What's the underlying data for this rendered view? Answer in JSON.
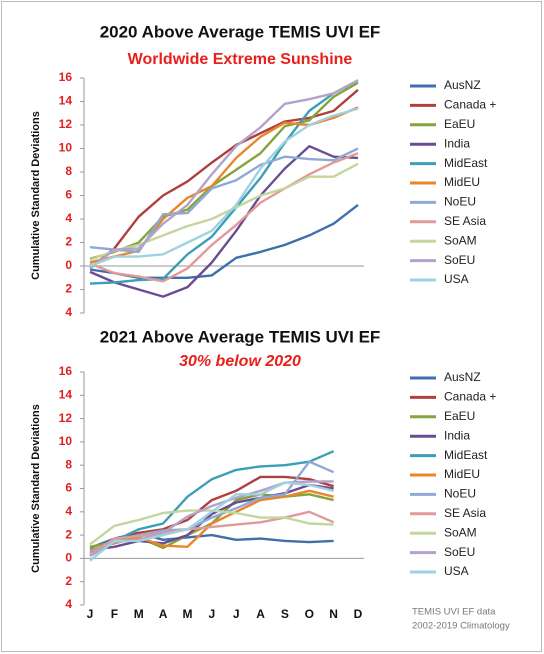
{
  "chart_data": [
    {
      "type": "line",
      "title": "2020 Above Average TEMIS UVI EF",
      "subtitle": "Worldwide Extreme Sunshine",
      "y_label": "Cumulative Standard Deviations",
      "ylim": [
        -4,
        16
      ],
      "yticks": [
        16,
        14,
        12,
        10,
        8,
        6,
        4,
        2,
        0,
        {
          "value": -2,
          "label": "2"
        },
        {
          "value": -4,
          "label": "4"
        }
      ],
      "legend": "right",
      "series": [
        {
          "name": "AusNZ",
          "color": "#3f6fad",
          "values": [
            -0.3,
            -0.6,
            -1,
            -1,
            -1,
            -0.8,
            0.7,
            1.2,
            1.8,
            2.6,
            3.6,
            5.2
          ]
        },
        {
          "name": "Canada +",
          "color": "#b0403e",
          "values": [
            -0.2,
            1.5,
            4.2,
            6,
            7.2,
            8.8,
            10.3,
            11.3,
            12.3,
            12.6,
            13.2,
            15
          ]
        },
        {
          "name": "EaEU",
          "color": "#86a33c",
          "values": [
            0.6,
            1.2,
            2,
            4.2,
            4.8,
            6.8,
            8.2,
            9.6,
            11.9,
            12.4,
            14.4,
            15.6
          ]
        },
        {
          "name": "India",
          "color": "#6a4c93",
          "values": [
            -0.5,
            -1.4,
            -2,
            -2.6,
            -1.8,
            0.3,
            3,
            6,
            8.3,
            10.2,
            9.3,
            9.2
          ]
        },
        {
          "name": "MidEast",
          "color": "#3b9fb5",
          "values": [
            -1.5,
            -1.4,
            -1.2,
            -1.1,
            1,
            2.5,
            5,
            7.5,
            10.5,
            13.2,
            14.7,
            15.8
          ]
        },
        {
          "name": "MidEU",
          "color": "#e8862a",
          "values": [
            0.3,
            0.8,
            1.3,
            4,
            5.8,
            6.8,
            9.2,
            11,
            12.2,
            12,
            12.6,
            13.5
          ]
        },
        {
          "name": "NoEU",
          "color": "#8ea9d4",
          "values": [
            1.6,
            1.4,
            1.2,
            4.4,
            4.5,
            6.6,
            7.3,
            8.6,
            9.3,
            9.1,
            9,
            10
          ]
        },
        {
          "name": "SE Asia",
          "color": "#e19a98",
          "values": [
            0.2,
            -0.6,
            -0.9,
            -1.3,
            -0.2,
            1.8,
            3.5,
            5.4,
            6.6,
            7.8,
            8.8,
            9.6
          ]
        },
        {
          "name": "SoAM",
          "color": "#c3d69b",
          "values": [
            0.5,
            1.3,
            1.8,
            2.6,
            3.4,
            4,
            5,
            6,
            6.6,
            7.6,
            7.6,
            8.7
          ]
        },
        {
          "name": "SoEU",
          "color": "#b3a3c9",
          "values": [
            -0.2,
            1.4,
            1.5,
            3.6,
            5.2,
            7.8,
            10.2,
            11.8,
            13.8,
            14.2,
            14.7,
            15.8
          ]
        },
        {
          "name": "USA",
          "color": "#9fd1e0",
          "values": [
            0,
            0.8,
            0.8,
            1,
            2,
            3,
            5.2,
            8.3,
            10.6,
            12,
            12.8,
            13.4
          ]
        }
      ]
    },
    {
      "type": "line",
      "title": "2021 Above Average TEMIS UVI EF",
      "subtitle": "30% below 2020",
      "y_label": "Cumulative Standard Deviations",
      "categories": [
        "J",
        "F",
        "M",
        "A",
        "M",
        "J",
        "J",
        "A",
        "S",
        "O",
        "N",
        "D"
      ],
      "ylim": [
        -4,
        16
      ],
      "yticks": [
        16,
        14,
        12,
        10,
        8,
        6,
        4,
        2,
        0,
        {
          "value": -2,
          "label": "2"
        },
        {
          "value": -4,
          "label": "4"
        }
      ],
      "legend": "right",
      "series": [
        {
          "name": "AusNZ",
          "color": "#3f6fad",
          "values": [
            0.9,
            1.7,
            2.2,
            1.6,
            1.8,
            2,
            1.6,
            1.7,
            1.5,
            1.4,
            1.5,
            null
          ]
        },
        {
          "name": "Canada +",
          "color": "#b0403e",
          "values": [
            0.3,
            1.5,
            2.2,
            2.5,
            3.3,
            5,
            5.8,
            7,
            7,
            6.8,
            6.2,
            null
          ]
        },
        {
          "name": "EaEU",
          "color": "#86a33c",
          "values": [
            1,
            1.4,
            1.8,
            0.9,
            2,
            3,
            5,
            5.5,
            5.3,
            5.5,
            5,
            null
          ]
        },
        {
          "name": "India",
          "color": "#6a4c93",
          "values": [
            0.7,
            1,
            1.5,
            1.3,
            2,
            3.8,
            4.8,
            5.2,
            5.6,
            6.3,
            6,
            null
          ]
        },
        {
          "name": "MidEast",
          "color": "#3b9fb5",
          "values": [
            0.5,
            1.5,
            2.5,
            3,
            5.3,
            6.8,
            7.6,
            7.9,
            8,
            8.3,
            9.2,
            null
          ]
        },
        {
          "name": "MidEU",
          "color": "#e8862a",
          "values": [
            0.7,
            1.3,
            1.8,
            1.1,
            1,
            3,
            4,
            5,
            5.3,
            5.8,
            5.3,
            null
          ]
        },
        {
          "name": "NoEU",
          "color": "#8ea9d4",
          "values": [
            0.5,
            1.6,
            2,
            2.4,
            2.5,
            3.5,
            4.3,
            5.2,
            5.5,
            8.3,
            7.4,
            null
          ]
        },
        {
          "name": "SE Asia",
          "color": "#e19a98",
          "values": [
            0.3,
            1.7,
            1.9,
            2.2,
            2.5,
            2.7,
            2.9,
            3.1,
            3.5,
            4,
            3.1,
            null
          ]
        },
        {
          "name": "SoAM",
          "color": "#c3d69b",
          "values": [
            1.2,
            2.8,
            3.3,
            3.9,
            4.1,
            4.1,
            3.9,
            3.5,
            3.5,
            3,
            2.9,
            null
          ]
        },
        {
          "name": "SoEU",
          "color": "#b3a3c9",
          "values": [
            0.2,
            1.4,
            1.6,
            2.2,
            3.6,
            4.5,
            5.2,
            5.8,
            6.5,
            6.6,
            6.6,
            null
          ]
        },
        {
          "name": "USA",
          "color": "#9fd1e0",
          "values": [
            -0.2,
            1.5,
            1.5,
            2,
            2.5,
            4,
            5.5,
            5.5,
            6.5,
            6.3,
            5.8,
            null
          ]
        }
      ]
    }
  ],
  "footnote": [
    "TEMIS UVI EF data",
    "2002-2019 Climatology"
  ]
}
